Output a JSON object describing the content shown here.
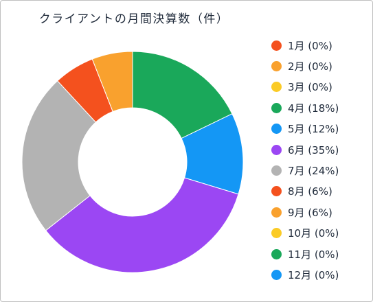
{
  "chart_data": {
    "type": "pie",
    "title": "クライアントの月間決算数（件）",
    "categories": [
      "1月",
      "2月",
      "3月",
      "4月",
      "5月",
      "6月",
      "7月",
      "8月",
      "9月",
      "10月",
      "11月",
      "12月"
    ],
    "values": [
      0,
      0,
      0,
      18,
      12,
      35,
      24,
      6,
      6,
      0,
      0,
      0
    ],
    "unit": "%",
    "legend_labels": [
      "1月 (0%)",
      "2月 (0%)",
      "3月 (0%)",
      "4月 (18%)",
      "5月 (12%)",
      "6月 (35%)",
      "7月 (24%)",
      "8月 (6%)",
      "9月 (6%)",
      "10月 (0%)",
      "11月 (0%)",
      "12月 (0%)"
    ],
    "colors": [
      "#f4511e",
      "#f9a12e",
      "#fbcb26",
      "#1aa85a",
      "#1497f5",
      "#9b47f3",
      "#b3b3b3",
      "#f4511e",
      "#f9a12e",
      "#fbcb26",
      "#1aa85a",
      "#1497f5"
    ],
    "donut": true,
    "start_angle": "12 o'clock",
    "direction": "clockwise",
    "legend_position": "right"
  }
}
